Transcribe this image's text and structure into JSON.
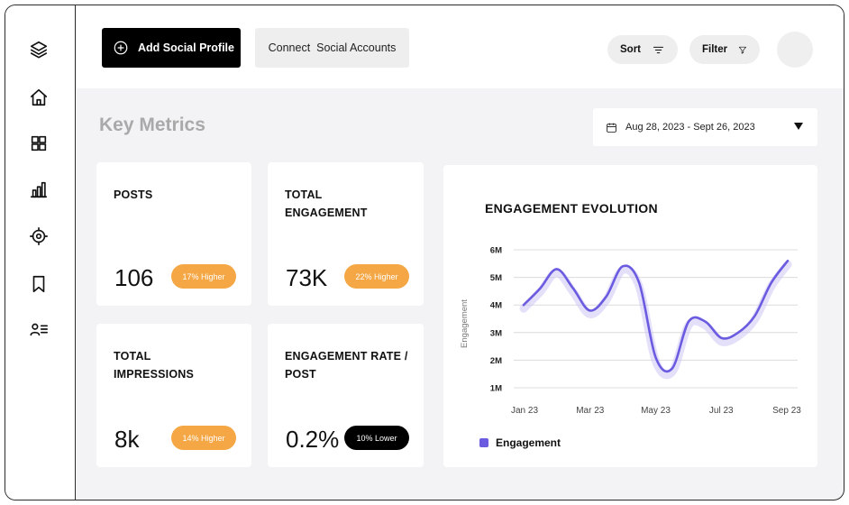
{
  "toolbar": {
    "add_profile_label": "Add Social Profile",
    "connect_label": "Connect  Social Accounts",
    "sort_label": "Sort",
    "filter_label": "Filter"
  },
  "page": {
    "title": "Key Metrics",
    "date_range": "Aug 28, 2023 - Sept 26, 2023"
  },
  "metrics": [
    {
      "title": "POSTS",
      "value": "106",
      "badge": "17% Higher",
      "badge_style": "orange"
    },
    {
      "title": "TOTAL ENGAGEMENT",
      "value": "73K",
      "badge": "22% Higher",
      "badge_style": "orange"
    },
    {
      "title": "TOTAL IMPRESSIONS",
      "value": "8k",
      "badge": "14% Higher",
      "badge_style": "orange"
    },
    {
      "title": "ENGAGEMENT RATE / POST",
      "value": "0.2%",
      "badge": "10% Lower",
      "badge_style": "black"
    }
  ],
  "chart_data": {
    "type": "line",
    "title": "ENGAGEMENT EVOLUTION",
    "ylabel": "Engagement",
    "xlabel": "",
    "y_ticks": [
      "6M",
      "5M",
      "4M",
      "3M",
      "2M",
      "1M"
    ],
    "y_tick_values": [
      6,
      5,
      4,
      3,
      2,
      1
    ],
    "x_ticks": [
      "Jan 23",
      "Mar 23",
      "May 23",
      "Jul 23",
      "Sep 23"
    ],
    "ylim": [
      1,
      6
    ],
    "grid": true,
    "legend_placement": "bottom-left",
    "series": [
      {
        "name": "Engagement",
        "color": "#6b5be0",
        "x": [
          0,
          0.5,
          1,
          1.5,
          2,
          2.5,
          3,
          3.5,
          4,
          4.5,
          5,
          5.5,
          6,
          6.5,
          7,
          7.5,
          8
        ],
        "y": [
          4.0,
          4.6,
          5.3,
          4.6,
          3.8,
          4.3,
          5.4,
          4.8,
          2.1,
          1.7,
          3.4,
          3.4,
          2.8,
          3.0,
          3.6,
          4.8,
          5.6
        ]
      }
    ]
  },
  "icons": {
    "sidebar": [
      "layers-icon",
      "home-icon",
      "grid-icon",
      "bar-chart-icon",
      "target-icon",
      "bookmark-icon",
      "contacts-list-icon"
    ]
  },
  "colors": {
    "accent": "#6b5be0",
    "badge_orange": "#f4a744",
    "primary_button": "#000000"
  }
}
